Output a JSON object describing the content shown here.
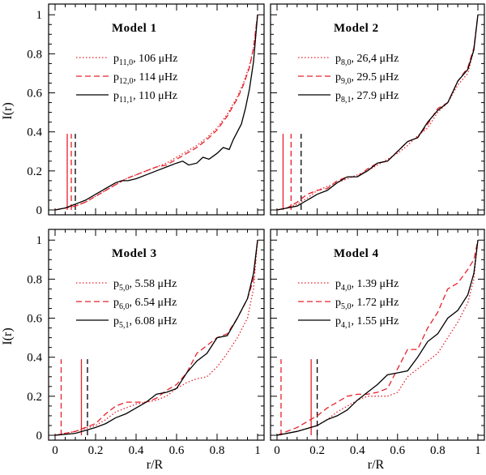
{
  "chart_data": {
    "type": "line",
    "xlabel": "r/R",
    "ylabel": "I(r)",
    "xlim": [
      0,
      1
    ],
    "ylim": [
      0,
      1.03
    ],
    "x_ticks": [
      "0",
      "0.2",
      "0.4",
      "0.6",
      "0.8",
      "1"
    ],
    "y_ticks": [
      "0",
      "0.2",
      "0.4",
      "0.6",
      "0.8",
      "1"
    ],
    "colors": {
      "red": "#e8202a",
      "black": "#000000"
    },
    "panels": [
      {
        "title": "Model 1",
        "series": [
          {
            "name": "p11,0",
            "label_p": "p",
            "label_sub": "11,0",
            "label_val": ", 106 μHz",
            "style": "dotted",
            "color": "#e8202a",
            "x": [
              0,
              0.05,
              0.1,
              0.15,
              0.2,
              0.25,
              0.3,
              0.35,
              0.4,
              0.45,
              0.5,
              0.55,
              0.6,
              0.65,
              0.7,
              0.75,
              0.8,
              0.85,
              0.9,
              0.93,
              0.96,
              0.98,
              1.0
            ],
            "y": [
              0,
              0.01,
              0.02,
              0.04,
              0.07,
              0.1,
              0.13,
              0.16,
              0.18,
              0.2,
              0.22,
              0.24,
              0.27,
              0.3,
              0.33,
              0.37,
              0.42,
              0.49,
              0.58,
              0.65,
              0.74,
              0.83,
              1.0
            ]
          },
          {
            "name": "p12,0",
            "label_p": "p",
            "label_sub": "12,0",
            "label_val": ", 114 μHz",
            "style": "dashed",
            "color": "#e8202a",
            "x": [
              0,
              0.05,
              0.1,
              0.15,
              0.2,
              0.25,
              0.3,
              0.35,
              0.4,
              0.45,
              0.5,
              0.55,
              0.6,
              0.65,
              0.7,
              0.75,
              0.8,
              0.85,
              0.9,
              0.93,
              0.96,
              0.98,
              1.0
            ],
            "y": [
              0,
              0.01,
              0.02,
              0.04,
              0.07,
              0.1,
              0.13,
              0.16,
              0.18,
              0.2,
              0.22,
              0.23,
              0.26,
              0.29,
              0.32,
              0.36,
              0.41,
              0.48,
              0.57,
              0.64,
              0.73,
              0.83,
              1.0
            ]
          },
          {
            "name": "p11,1",
            "label_p": "p",
            "label_sub": "11,1",
            "label_val": ", 110 μHz",
            "style": "solid",
            "color": "#000000",
            "x": [
              0,
              0.05,
              0.1,
              0.15,
              0.2,
              0.25,
              0.3,
              0.33,
              0.36,
              0.4,
              0.45,
              0.5,
              0.55,
              0.6,
              0.63,
              0.66,
              0.7,
              0.73,
              0.76,
              0.8,
              0.83,
              0.86,
              0.88,
              0.9,
              0.92,
              0.94,
              0.96,
              0.98,
              1.0
            ],
            "y": [
              0,
              0.01,
              0.03,
              0.05,
              0.08,
              0.11,
              0.14,
              0.15,
              0.15,
              0.16,
              0.18,
              0.2,
              0.22,
              0.24,
              0.25,
              0.23,
              0.24,
              0.27,
              0.26,
              0.29,
              0.32,
              0.31,
              0.36,
              0.4,
              0.44,
              0.52,
              0.62,
              0.76,
              1.0
            ]
          }
        ],
        "vlines": [
          {
            "x": 0.06,
            "style": "solid",
            "color": "#e8202a"
          },
          {
            "x": 0.08,
            "style": "dashed",
            "color": "#e8202a"
          },
          {
            "x": 0.1,
            "style": "dashed",
            "color": "#000000"
          }
        ]
      },
      {
        "title": "Model 2",
        "series": [
          {
            "name": "p8,0",
            "label_p": "p",
            "label_sub": "8,0",
            "label_val": ", 26,4 μHz",
            "style": "dotted",
            "color": "#e8202a",
            "x": [
              0,
              0.05,
              0.1,
              0.15,
              0.2,
              0.25,
              0.3,
              0.35,
              0.4,
              0.45,
              0.5,
              0.55,
              0.6,
              0.65,
              0.7,
              0.75,
              0.8,
              0.85,
              0.9,
              0.95,
              0.98,
              1.0
            ],
            "y": [
              0,
              0.01,
              0.03,
              0.06,
              0.1,
              0.12,
              0.14,
              0.16,
              0.18,
              0.2,
              0.23,
              0.26,
              0.29,
              0.33,
              0.38,
              0.42,
              0.5,
              0.55,
              0.64,
              0.7,
              0.82,
              1.0
            ]
          },
          {
            "name": "p9,0",
            "label_p": "p",
            "label_sub": "9,0",
            "label_val": ", 29.5 μHz",
            "style": "dashed",
            "color": "#e8202a",
            "x": [
              0,
              0.05,
              0.1,
              0.15,
              0.2,
              0.25,
              0.3,
              0.35,
              0.4,
              0.45,
              0.5,
              0.55,
              0.6,
              0.65,
              0.7,
              0.75,
              0.8,
              0.85,
              0.9,
              0.95,
              0.98,
              1.0
            ],
            "y": [
              0,
              0.01,
              0.04,
              0.08,
              0.1,
              0.11,
              0.15,
              0.17,
              0.17,
              0.21,
              0.24,
              0.25,
              0.3,
              0.35,
              0.37,
              0.44,
              0.52,
              0.55,
              0.66,
              0.73,
              0.83,
              1.0
            ]
          },
          {
            "name": "p8,1",
            "label_p": "p",
            "label_sub": "8,1",
            "label_val": ", 27.9 μHz",
            "style": "solid",
            "color": "#000000",
            "x": [
              0,
              0.05,
              0.1,
              0.15,
              0.2,
              0.25,
              0.3,
              0.35,
              0.4,
              0.45,
              0.5,
              0.55,
              0.6,
              0.65,
              0.7,
              0.75,
              0.8,
              0.85,
              0.9,
              0.95,
              0.98,
              1.0
            ],
            "y": [
              0,
              0.01,
              0.02,
              0.05,
              0.08,
              0.1,
              0.14,
              0.17,
              0.17,
              0.2,
              0.24,
              0.25,
              0.3,
              0.35,
              0.37,
              0.45,
              0.51,
              0.55,
              0.66,
              0.72,
              0.82,
              1.0
            ]
          }
        ],
        "vlines": [
          {
            "x": 0.03,
            "style": "solid",
            "color": "#e8202a"
          },
          {
            "x": 0.07,
            "style": "dashed",
            "color": "#e8202a"
          },
          {
            "x": 0.12,
            "style": "dashed",
            "color": "#000000"
          }
        ]
      },
      {
        "title": "Model 3",
        "series": [
          {
            "name": "p5,0",
            "label_p": "p",
            "label_sub": "5,0",
            "label_val": ", 5.58 μHz",
            "style": "dotted",
            "color": "#e8202a",
            "x": [
              0,
              0.1,
              0.2,
              0.25,
              0.3,
              0.35,
              0.4,
              0.45,
              0.5,
              0.55,
              0.6,
              0.65,
              0.7,
              0.75,
              0.8,
              0.85,
              0.9,
              0.95,
              0.98,
              1.0
            ],
            "y": [
              0,
              0.02,
              0.05,
              0.08,
              0.12,
              0.14,
              0.16,
              0.17,
              0.18,
              0.2,
              0.24,
              0.27,
              0.29,
              0.3,
              0.35,
              0.42,
              0.5,
              0.6,
              0.75,
              1.0
            ]
          },
          {
            "name": "p6,0",
            "label_p": "p",
            "label_sub": "6,0",
            "label_val": ", 6.54 μHz",
            "style": "dashed",
            "color": "#e8202a",
            "x": [
              0,
              0.1,
              0.2,
              0.25,
              0.3,
              0.35,
              0.4,
              0.45,
              0.5,
              0.55,
              0.6,
              0.65,
              0.7,
              0.75,
              0.8,
              0.85,
              0.9,
              0.95,
              0.98,
              1.0
            ],
            "y": [
              0,
              0.02,
              0.06,
              0.11,
              0.15,
              0.17,
              0.17,
              0.17,
              0.19,
              0.23,
              0.26,
              0.32,
              0.42,
              0.46,
              0.5,
              0.52,
              0.6,
              0.7,
              0.8,
              1.0
            ]
          },
          {
            "name": "p5,1",
            "label_p": "p",
            "label_sub": "5,1",
            "label_val": ", 6.08 μHz",
            "style": "solid",
            "color": "#000000",
            "x": [
              0,
              0.1,
              0.2,
              0.25,
              0.3,
              0.35,
              0.4,
              0.45,
              0.5,
              0.55,
              0.6,
              0.65,
              0.7,
              0.75,
              0.8,
              0.85,
              0.9,
              0.95,
              0.98,
              1.0
            ],
            "y": [
              0,
              0.01,
              0.04,
              0.06,
              0.09,
              0.11,
              0.14,
              0.17,
              0.21,
              0.22,
              0.24,
              0.32,
              0.38,
              0.42,
              0.5,
              0.51,
              0.6,
              0.7,
              0.83,
              1.0
            ]
          }
        ],
        "vlines": [
          {
            "x": 0.03,
            "style": "dashed",
            "color": "#e8202a"
          },
          {
            "x": 0.13,
            "style": "solid",
            "color": "#e8202a"
          },
          {
            "x": 0.16,
            "style": "dashed",
            "color": "#000000"
          }
        ]
      },
      {
        "title": "Model 4",
        "series": [
          {
            "name": "p4,0",
            "label_p": "p",
            "label_sub": "4,0",
            "label_val": ", 1.39 μHz",
            "style": "dotted",
            "color": "#e8202a",
            "x": [
              0,
              0.1,
              0.2,
              0.25,
              0.3,
              0.35,
              0.4,
              0.45,
              0.5,
              0.55,
              0.6,
              0.65,
              0.7,
              0.75,
              0.8,
              0.85,
              0.9,
              0.95,
              0.98,
              1.0
            ],
            "y": [
              0,
              0.02,
              0.05,
              0.08,
              0.12,
              0.15,
              0.18,
              0.2,
              0.2,
              0.2,
              0.22,
              0.3,
              0.34,
              0.38,
              0.42,
              0.5,
              0.58,
              0.68,
              0.8,
              1.0
            ]
          },
          {
            "name": "p5,0",
            "label_p": "p",
            "label_sub": "5,0",
            "label_val": ", 1.72 μHz",
            "style": "dashed",
            "color": "#e8202a",
            "x": [
              0,
              0.1,
              0.2,
              0.25,
              0.3,
              0.35,
              0.4,
              0.45,
              0.5,
              0.55,
              0.6,
              0.65,
              0.7,
              0.75,
              0.8,
              0.85,
              0.9,
              0.95,
              0.98,
              1.0
            ],
            "y": [
              0,
              0.04,
              0.1,
              0.14,
              0.17,
              0.2,
              0.21,
              0.21,
              0.22,
              0.24,
              0.34,
              0.44,
              0.44,
              0.55,
              0.63,
              0.75,
              0.78,
              0.85,
              0.9,
              1.0
            ]
          },
          {
            "name": "p4,1",
            "label_p": "p",
            "label_sub": "4,1",
            "label_val": ", 1.55 μHz",
            "style": "solid",
            "color": "#000000",
            "x": [
              0,
              0.1,
              0.2,
              0.25,
              0.3,
              0.35,
              0.4,
              0.45,
              0.5,
              0.55,
              0.6,
              0.65,
              0.7,
              0.75,
              0.8,
              0.85,
              0.9,
              0.95,
              0.98,
              1.0
            ],
            "y": [
              0,
              0.02,
              0.05,
              0.08,
              0.1,
              0.13,
              0.18,
              0.22,
              0.26,
              0.31,
              0.32,
              0.33,
              0.4,
              0.48,
              0.52,
              0.6,
              0.64,
              0.72,
              0.83,
              1.0
            ]
          }
        ],
        "vlines": [
          {
            "x": 0.02,
            "style": "dashed",
            "color": "#e8202a"
          },
          {
            "x": 0.17,
            "style": "solid",
            "color": "#e8202a"
          },
          {
            "x": 0.2,
            "style": "dashed",
            "color": "#000000"
          }
        ]
      }
    ]
  }
}
